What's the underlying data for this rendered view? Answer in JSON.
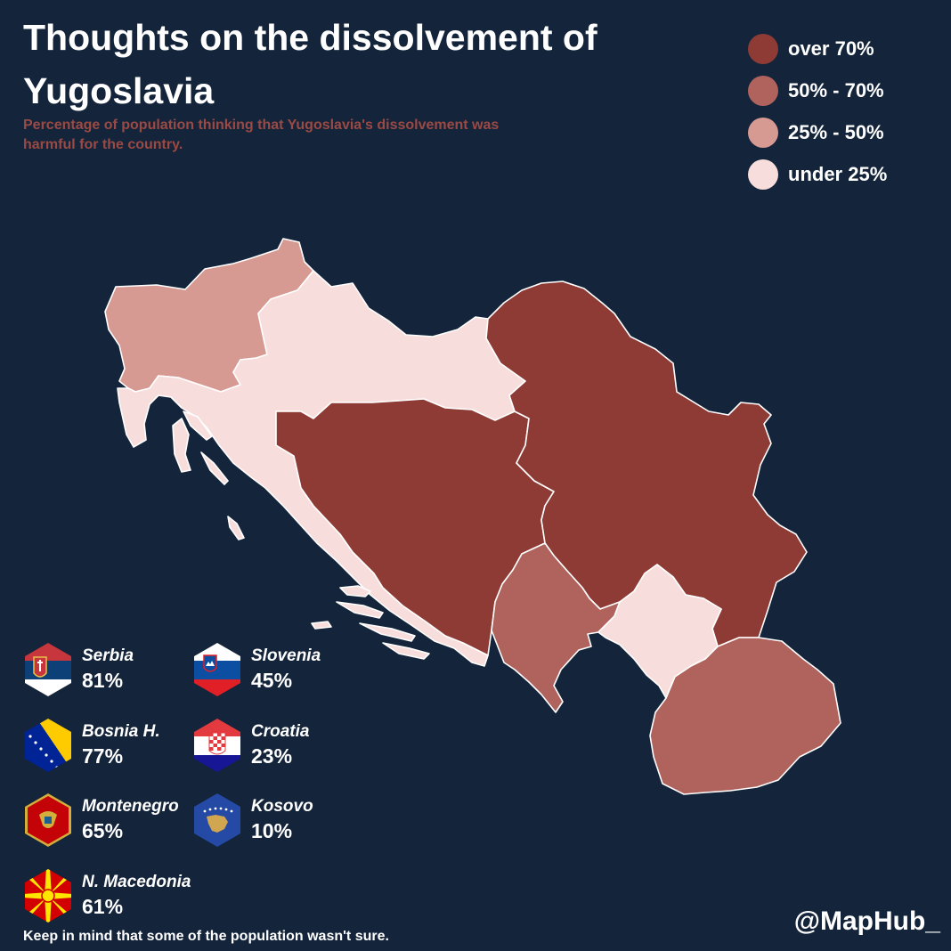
{
  "title": "Thoughts on the dissolvement of Yugoslavia",
  "subtitle": "Percentage of population thinking that Yugoslavia's dissolvement was harmful for the country.",
  "legend": [
    {
      "label": "over 70%",
      "color": "#8e3b35"
    },
    {
      "label": "50% - 70%",
      "color": "#b0635c"
    },
    {
      "label": "25% - 50%",
      "color": "#d69a93"
    },
    {
      "label": "under 25%",
      "color": "#f7dddb"
    }
  ],
  "colors": {
    "background": "#14243a",
    "border": "#ffffff",
    "subtitle": "#9a4a44"
  },
  "countries": [
    {
      "key": "serbia",
      "name": "Serbia",
      "value": "81%",
      "percent": 81,
      "flag_icon": "serbia-flag-icon"
    },
    {
      "key": "slovenia",
      "name": "Slovenia",
      "value": "45%",
      "percent": 45,
      "flag_icon": "slovenia-flag-icon"
    },
    {
      "key": "bosnia",
      "name": "Bosnia H.",
      "value": "77%",
      "percent": 77,
      "flag_icon": "bosnia-flag-icon"
    },
    {
      "key": "croatia",
      "name": "Croatia",
      "value": "23%",
      "percent": 23,
      "flag_icon": "croatia-flag-icon"
    },
    {
      "key": "montenegro",
      "name": "Montenegro",
      "value": "65%",
      "percent": 65,
      "flag_icon": "montenegro-flag-icon"
    },
    {
      "key": "kosovo",
      "name": "Kosovo",
      "value": "10%",
      "percent": 10,
      "flag_icon": "kosovo-flag-icon"
    },
    {
      "key": "macedonia",
      "name": "N. Macedonia",
      "value": "61%",
      "percent": 61,
      "flag_icon": "macedonia-flag-icon"
    }
  ],
  "footnote": "Keep in mind that some of the population wasn't sure.",
  "credit": "@MapHub_"
}
